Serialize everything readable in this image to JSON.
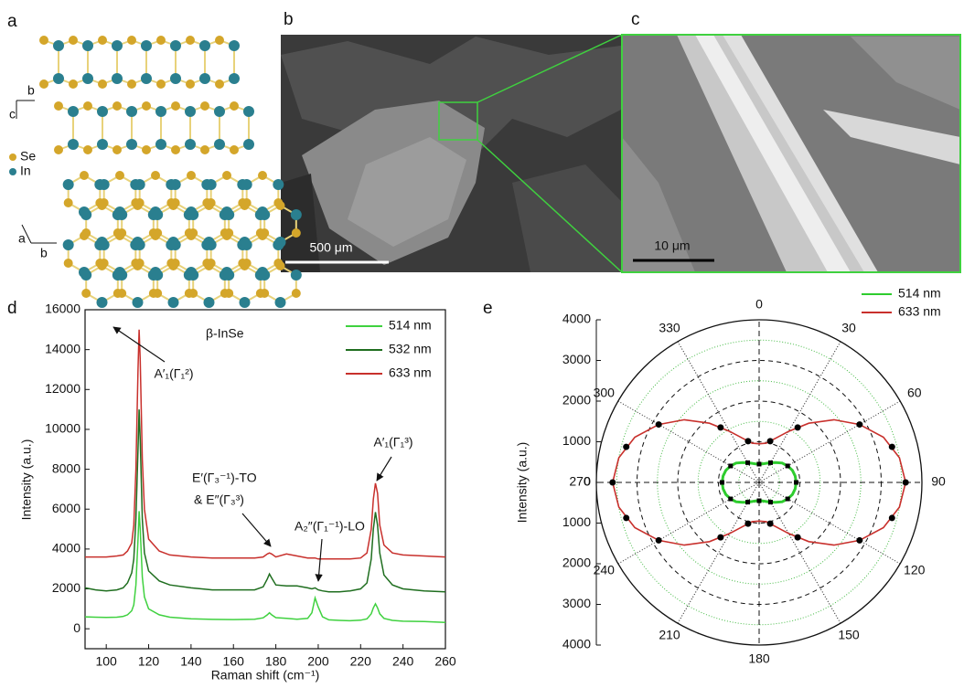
{
  "panels": {
    "a": {
      "label": "a",
      "axis_top": [
        "c",
        "b"
      ],
      "legend": [
        "Se",
        "In"
      ],
      "axis_bottom": [
        "a",
        "b"
      ]
    },
    "b": {
      "label": "b",
      "scale": "500 μm"
    },
    "c": {
      "label": "c",
      "scale": "10 μm"
    }
  },
  "chart_data": [
    {
      "type": "line",
      "panel_label": "d",
      "title": "β-InSe",
      "xlabel": "Raman shift (cm⁻¹)",
      "ylabel": "Intensity (a.u.)",
      "xlim": [
        90,
        260
      ],
      "xticks": [
        100,
        120,
        140,
        160,
        180,
        200,
        220,
        240,
        260
      ],
      "ylim": [
        -1000,
        16000
      ],
      "yticks": [
        0,
        2000,
        4000,
        6000,
        8000,
        10000,
        12000,
        14000,
        16000
      ],
      "x": [
        90,
        95,
        100,
        105,
        108,
        110,
        112,
        113,
        114,
        115,
        115.5,
        116,
        117,
        118,
        120,
        125,
        130,
        140,
        150,
        160,
        170,
        174,
        176,
        177,
        178,
        180,
        185,
        190,
        195,
        197,
        198.5,
        200,
        202,
        205,
        210,
        215,
        220,
        223,
        225,
        226,
        227,
        228,
        229,
        231,
        235,
        240,
        250,
        260
      ],
      "series": [
        {
          "name": "514 nm",
          "color": "#3fd13f",
          "values": [
            600,
            580,
            570,
            580,
            620,
            700,
            900,
            1200,
            2200,
            4500,
            5900,
            5000,
            2600,
            1600,
            1000,
            700,
            580,
            500,
            470,
            460,
            480,
            550,
            700,
            800,
            700,
            560,
            520,
            480,
            520,
            800,
            1550,
            1100,
            600,
            450,
            420,
            400,
            430,
            500,
            750,
            1050,
            1250,
            1050,
            750,
            520,
            420,
            380,
            360,
            320
          ]
        },
        {
          "name": "532 nm",
          "color": "#1f6e1f",
          "values": [
            2050,
            1950,
            1900,
            1950,
            2050,
            2300,
            2800,
            3500,
            5500,
            9000,
            11000,
            9500,
            5500,
            3800,
            2900,
            2400,
            2200,
            2050,
            1950,
            1950,
            1950,
            2100,
            2500,
            2750,
            2550,
            2200,
            2150,
            2150,
            2050,
            2000,
            2050,
            1950,
            1900,
            1850,
            1850,
            1900,
            2000,
            2300,
            3500,
            5000,
            5850,
            5200,
            3800,
            2700,
            2200,
            2000,
            1900,
            1850
          ]
        },
        {
          "name": "633 nm",
          "color": "#c8302c",
          "values": [
            3600,
            3600,
            3600,
            3650,
            3700,
            3900,
            4300,
            5200,
            8000,
            13000,
            15000,
            13500,
            8500,
            6000,
            4500,
            3900,
            3700,
            3600,
            3550,
            3550,
            3550,
            3600,
            3750,
            3800,
            3750,
            3600,
            3750,
            3650,
            3550,
            3550,
            3550,
            3500,
            3500,
            3500,
            3500,
            3500,
            3550,
            3800,
            5000,
            6500,
            7300,
            6800,
            5200,
            4200,
            3800,
            3700,
            3650,
            3600
          ]
        }
      ],
      "annotations": [
        "A′₁(Γ₁²)",
        "E′(Γ₃⁻¹)-TO",
        "& E″(Γ₃³)",
        "A₂″(Γ₁⁻¹)-LO",
        "A′₁(Γ₁³)"
      ]
    },
    {
      "type": "polar",
      "panel_label": "e",
      "ylabel": "Intensity (a.u.)",
      "rlim": [
        0,
        4000
      ],
      "rticks": [
        0,
        1000,
        2000,
        3000,
        4000
      ],
      "minor_rticks": [
        500,
        1500,
        2500,
        3500
      ],
      "minor_color": "#44bb44",
      "thetaticks": [
        0,
        30,
        60,
        90,
        120,
        150,
        180,
        210,
        240,
        270,
        300,
        330
      ],
      "marker_color": "#000000",
      "series": [
        {
          "name": "514 nm",
          "color": "#2ecc2e",
          "theta": [
            0,
            30,
            60,
            90,
            120,
            150,
            180,
            210,
            240,
            270,
            300,
            330
          ],
          "values": [
            450,
            560,
            810,
            910,
            810,
            560,
            450,
            560,
            810,
            910,
            810,
            560
          ],
          "fit_theta": [
            0,
            10,
            20,
            30,
            40,
            50,
            60,
            70,
            80,
            90,
            100,
            110,
            120,
            130,
            140,
            150,
            160,
            170,
            180,
            190,
            200,
            210,
            220,
            230,
            240,
            250,
            260,
            270,
            280,
            290,
            300,
            310,
            320,
            330,
            340,
            350
          ],
          "fit_values": [
            450,
            460,
            500,
            560,
            640,
            740,
            810,
            870,
            900,
            910,
            900,
            870,
            810,
            740,
            640,
            560,
            500,
            460,
            450,
            460,
            500,
            560,
            640,
            740,
            810,
            870,
            900,
            910,
            900,
            870,
            810,
            740,
            640,
            560,
            500,
            460
          ]
        },
        {
          "name": "633 nm",
          "color": "#c8302c",
          "theta": [
            15,
            35,
            60,
            75,
            90,
            105,
            120,
            145,
            165,
            195,
            215,
            240,
            255,
            270,
            285,
            300,
            325,
            345
          ],
          "values": [
            1050,
            1650,
            2850,
            3380,
            3600,
            3380,
            2850,
            1650,
            1050,
            1050,
            1650,
            2850,
            3380,
            3600,
            3380,
            2850,
            1650,
            1050
          ],
          "fit_theta": [
            0,
            10,
            20,
            30,
            40,
            50,
            60,
            70,
            80,
            90,
            100,
            110,
            120,
            130,
            140,
            150,
            160,
            170,
            180,
            190,
            200,
            210,
            220,
            230,
            240,
            250,
            260,
            270,
            280,
            290,
            300,
            310,
            320,
            330,
            340,
            350
          ],
          "fit_values": [
            950,
            980,
            1150,
            1450,
            1900,
            2400,
            2850,
            3250,
            3500,
            3600,
            3500,
            3250,
            2850,
            2400,
            1900,
            1450,
            1150,
            980,
            950,
            980,
            1150,
            1450,
            1900,
            2400,
            2850,
            3250,
            3500,
            3600,
            3500,
            3250,
            2850,
            2400,
            1900,
            1450,
            1150,
            980
          ]
        }
      ]
    }
  ]
}
